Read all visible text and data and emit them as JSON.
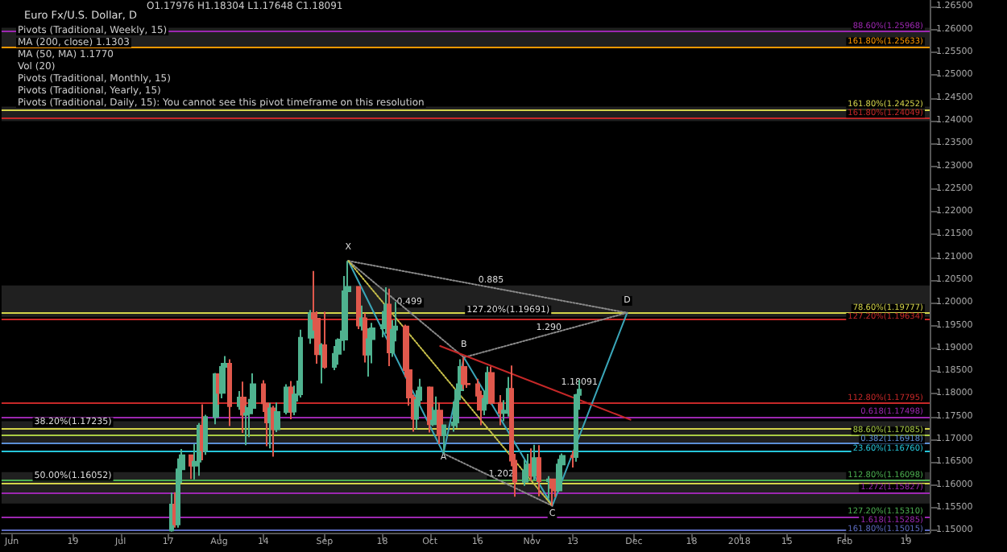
{
  "chart_data": {
    "type": "candlestick",
    "title": "Euro Fx/U.S. Dollar, D",
    "xlim": [
      "2017-05-29",
      "2018-02-26"
    ],
    "xticks": [
      {
        "value": "2017-06-01",
        "label": "Jun"
      },
      {
        "value": "2017-06-19",
        "label": "19"
      },
      {
        "value": "2017-07-03",
        "label": "Jul"
      },
      {
        "value": "2017-07-17",
        "label": "17"
      },
      {
        "value": "2017-08-01",
        "label": "Aug"
      },
      {
        "value": "2017-08-14",
        "label": "14"
      },
      {
        "value": "2017-09-01",
        "label": "Sep"
      },
      {
        "value": "2017-09-18",
        "label": "18"
      },
      {
        "value": "2017-10-02",
        "label": "Oct"
      },
      {
        "value": "2017-10-16",
        "label": "16"
      },
      {
        "value": "2017-11-01",
        "label": "Nov"
      },
      {
        "value": "2017-11-13",
        "label": "13"
      },
      {
        "value": "2017-12-01",
        "label": "Dec"
      },
      {
        "value": "2017-12-18",
        "label": "18"
      },
      {
        "value": "2018-01-01",
        "label": "2018"
      },
      {
        "value": "2018-01-15",
        "label": "15"
      },
      {
        "value": "2018-02-01",
        "label": "Feb"
      },
      {
        "value": "2018-02-19",
        "label": "19"
      }
    ],
    "ylim": [
      1.1495,
      1.2665
    ],
    "yticks": [
      {
        "value": 1.15,
        "label": "1.15000"
      },
      {
        "value": 1.155,
        "label": "1.15500"
      },
      {
        "value": 1.16,
        "label": "1.16000"
      },
      {
        "value": 1.165,
        "label": "1.16500"
      },
      {
        "value": 1.17,
        "label": "1.17000"
      },
      {
        "value": 1.175,
        "label": "1.17500"
      },
      {
        "value": 1.18,
        "label": "1.18000"
      },
      {
        "value": 1.185,
        "label": "1.18500"
      },
      {
        "value": 1.19,
        "label": "1.19000"
      },
      {
        "value": 1.195,
        "label": "1.19500"
      },
      {
        "value": 1.2,
        "label": "1.20000"
      },
      {
        "value": 1.205,
        "label": "1.20500"
      },
      {
        "value": 1.21,
        "label": "1.21000"
      },
      {
        "value": 1.215,
        "label": "1.21500"
      },
      {
        "value": 1.22,
        "label": "1.22000"
      },
      {
        "value": 1.225,
        "label": "1.22500"
      },
      {
        "value": 1.23,
        "label": "1.23000"
      },
      {
        "value": 1.235,
        "label": "1.23500"
      },
      {
        "value": 1.24,
        "label": "1.24000"
      },
      {
        "value": 1.245,
        "label": "1.24500"
      },
      {
        "value": 1.25,
        "label": "1.25000"
      },
      {
        "value": 1.255,
        "label": "1.25500"
      },
      {
        "value": 1.26,
        "label": "1.26000"
      },
      {
        "value": 1.265,
        "label": "1.26500"
      }
    ],
    "bands": [
      {
        "axis": "y",
        "from": 1.2559,
        "to": 1.2604,
        "color": "#3a3a3a"
      },
      {
        "axis": "y",
        "from": 1.2399,
        "to": 1.2431,
        "color": "#3a3a3a"
      },
      {
        "axis": "y",
        "from": 1.1969,
        "to": 1.2038,
        "color": "#3a3a3a"
      },
      {
        "axis": "y",
        "from": 1.1691,
        "to": 1.174,
        "color": "#3a3a3a"
      },
      {
        "axis": "y",
        "from": 1.1559,
        "to": 1.1628,
        "color": "#3a3a3a"
      }
    ],
    "ref_lines": [
      {
        "axis": "y",
        "value": 1.25968,
        "label": "88.60%(1.25968)",
        "color": "#9c27b0"
      },
      {
        "axis": "y",
        "value": 1.25633,
        "label": "161.80%(1.25633)",
        "color": "#ff9800"
      },
      {
        "axis": "y",
        "value": 1.24252,
        "label": "161.80%(1.24252)",
        "color": "#d4d44a"
      },
      {
        "axis": "y",
        "value": 1.24049,
        "label": "161.80%(1.24049)",
        "color": "#c62828"
      },
      {
        "axis": "y",
        "value": 1.19777,
        "label": "78.60%(1.19777)",
        "color": "#d4d44a"
      },
      {
        "axis": "y",
        "value": 1.19634,
        "label": "127.20%(1.19634)",
        "color": "#c62828"
      },
      {
        "axis": "y",
        "value": 1.17795,
        "label": "112.80%(1.17795)",
        "color": "#c62828"
      },
      {
        "axis": "y",
        "value": 1.17498,
        "label": "0.618(1.17498)",
        "color": "#9c27b0"
      },
      {
        "axis": "y",
        "value": 1.17235,
        "color": "#d4d44a"
      },
      {
        "axis": "y",
        "value": 1.17085,
        "label": "88.60%(1.17085)",
        "color": "#aacc44"
      },
      {
        "axis": "y",
        "value": 1.16918,
        "label": "0.382(1.16918)",
        "color": "#5c8fd6"
      },
      {
        "axis": "y",
        "value": 1.1676,
        "label": "23.60%(1.16760)",
        "color": "#26c6da"
      },
      {
        "axis": "y",
        "value": 1.16098,
        "label": "112.80%(1.16098)",
        "color": "#4caf50"
      },
      {
        "axis": "y",
        "value": 1.16052,
        "color": "#d4d44a"
      },
      {
        "axis": "y",
        "value": 1.15827,
        "label": "1.272(1.15827)",
        "color": "#9c27b0"
      },
      {
        "axis": "y",
        "value": 1.1531,
        "label": "127.20%(1.15310)",
        "color": "#4caf50"
      },
      {
        "axis": "y",
        "value": 1.15285,
        "label": "1.618(1.15285)",
        "color": "#9c27b0"
      },
      {
        "axis": "y",
        "value": 1.15015,
        "label": "161.80%(1.15015)",
        "color": "#5c6bc0"
      }
    ],
    "annotations": [
      "O1.17976 H1.18304 L1.17648 C1.18091",
      "Pivots (Traditional, Weekly, 15)",
      "MA (200, close) 1.1303",
      "MA (50, MA) 1.1770",
      "Vol (20)",
      "Pivots (Traditional, Monthly, 15)",
      "Pivots (Traditional, Yearly, 15)",
      "Pivots (Traditional, Daily, 15): You cannot see this pivot timeframe on this resolution",
      {
        "text": "1.18091",
        "x": "2017-11-15",
        "y": 1.18091
      },
      {
        "text": "38.20%(1.17235)",
        "x": "2017-06-19",
        "y": 1.17235
      },
      {
        "text": "50.00%(1.16052)",
        "x": "2017-06-19",
        "y": 1.16052
      },
      {
        "text": "X",
        "x": "2017-09-08",
        "y": 1.2106
      },
      {
        "text": "A",
        "x": "2017-10-06",
        "y": 1.1645
      },
      {
        "text": "B",
        "x": "2017-10-12",
        "y": 1.1893
      },
      {
        "text": "C",
        "x": "2017-11-07",
        "y": 1.1554
      },
      {
        "text": "D",
        "x": "2017-11-29",
        "y": 1.199
      },
      {
        "text": "0.885",
        "x": "2017-10-20",
        "y": 1.2034
      },
      {
        "text": "0.499",
        "x": "2017-09-26",
        "y": 1.1986
      },
      {
        "text": "127.20%(1.19691)",
        "x": "2017-10-25",
        "y": 1.1969
      },
      {
        "text": "1.290",
        "x": "2017-11-06",
        "y": 1.1929
      },
      {
        "text": "1.202",
        "x": "2017-10-23",
        "y": 1.1608
      }
    ],
    "series": [
      {
        "x": [
          "2017-07-18",
          "2017-07-19",
          "2017-07-20",
          "2017-07-21",
          "2017-07-24",
          "2017-07-25",
          "2017-07-26",
          "2017-07-27",
          "2017-07-28",
          "2017-07-31",
          "2017-08-01",
          "2017-08-02",
          "2017-08-03",
          "2017-08-04",
          "2017-08-07",
          "2017-08-08",
          "2017-08-09",
          "2017-08-10",
          "2017-08-11",
          "2017-08-14",
          "2017-08-15",
          "2017-08-16",
          "2017-08-17",
          "2017-08-18",
          "2017-08-21",
          "2017-08-22",
          "2017-08-23",
          "2017-08-24",
          "2017-08-25",
          "2017-08-28",
          "2017-08-29",
          "2017-08-30",
          "2017-08-31",
          "2017-09-01",
          "2017-09-04",
          "2017-09-05",
          "2017-09-06",
          "2017-09-07",
          "2017-09-08",
          "2017-09-11",
          "2017-09-12",
          "2017-09-13",
          "2017-09-14",
          "2017-09-15",
          "2017-09-18",
          "2017-09-19",
          "2017-09-20",
          "2017-09-21",
          "2017-09-22",
          "2017-09-25",
          "2017-09-26",
          "2017-09-27",
          "2017-09-28",
          "2017-09-29",
          "2017-10-02",
          "2017-10-03",
          "2017-10-04",
          "2017-10-05",
          "2017-10-06",
          "2017-10-09",
          "2017-10-10",
          "2017-10-11",
          "2017-10-12",
          "2017-10-13",
          "2017-10-16",
          "2017-10-17",
          "2017-10-18",
          "2017-10-19",
          "2017-10-20",
          "2017-10-23",
          "2017-10-24",
          "2017-10-25",
          "2017-10-26",
          "2017-10-27",
          "2017-10-30",
          "2017-10-31",
          "2017-11-01",
          "2017-11-02",
          "2017-11-03",
          "2017-11-06",
          "2017-11-07",
          "2017-11-08",
          "2017-11-09",
          "2017-11-10",
          "2017-11-13",
          "2017-11-14",
          "2017-11-15"
        ],
        "ohlc": [
          [
            1.15,
            1.1583,
            1.1497,
            1.1557
          ],
          [
            1.1557,
            1.1584,
            1.1506,
            1.1513
          ],
          [
            1.1513,
            1.1658,
            1.1506,
            1.1634
          ],
          [
            1.1634,
            1.1679,
            1.1604,
            1.1665
          ],
          [
            1.1665,
            1.1666,
            1.1613,
            1.1642
          ],
          [
            1.1642,
            1.169,
            1.1612,
            1.1651
          ],
          [
            1.1651,
            1.1736,
            1.162,
            1.173
          ],
          [
            1.173,
            1.1777,
            1.1654,
            1.1676
          ],
          [
            1.1676,
            1.1754,
            1.1666,
            1.1749
          ],
          [
            1.1749,
            1.1846,
            1.1733,
            1.1843
          ],
          [
            1.1843,
            1.1845,
            1.1776,
            1.1802
          ],
          [
            1.1802,
            1.1868,
            1.179,
            1.1859
          ],
          [
            1.1859,
            1.1883,
            1.1828,
            1.1866
          ],
          [
            1.1866,
            1.1876,
            1.1729,
            1.1773
          ],
          [
            1.1773,
            1.1806,
            1.1765,
            1.1792
          ],
          [
            1.1792,
            1.1827,
            1.1714,
            1.1754
          ],
          [
            1.1754,
            1.1774,
            1.1687,
            1.1757
          ],
          [
            1.1757,
            1.1789,
            1.1705,
            1.1769
          ],
          [
            1.1769,
            1.1845,
            1.176,
            1.1821
          ],
          [
            1.1821,
            1.183,
            1.176,
            1.1779
          ],
          [
            1.1779,
            1.1781,
            1.1685,
            1.1737
          ],
          [
            1.1737,
            1.178,
            1.168,
            1.1768
          ],
          [
            1.1768,
            1.1774,
            1.1662,
            1.1722
          ],
          [
            1.1722,
            1.1781,
            1.1716,
            1.176
          ],
          [
            1.176,
            1.1821,
            1.1755,
            1.1814
          ],
          [
            1.1814,
            1.1828,
            1.1744,
            1.1761
          ],
          [
            1.1761,
            1.1818,
            1.1753,
            1.1798
          ],
          [
            1.1798,
            1.1829,
            1.1783,
            1.1799
          ],
          [
            1.1799,
            1.1941,
            1.1792,
            1.1923
          ],
          [
            1.1923,
            1.1984,
            1.191,
            1.1977
          ],
          [
            1.1977,
            1.207,
            1.1939,
            1.1965
          ],
          [
            1.1965,
            1.1981,
            1.1866,
            1.1887
          ],
          [
            1.1887,
            1.1911,
            1.1823,
            1.1907
          ],
          [
            1.1907,
            1.198,
            1.1855,
            1.1859
          ],
          [
            1.1859,
            1.1905,
            1.1852,
            1.1888
          ],
          [
            1.1888,
            1.1922,
            1.1864,
            1.1918
          ],
          [
            1.1918,
            1.1939,
            1.1897,
            1.1919
          ],
          [
            1.1919,
            1.2059,
            1.1895,
            1.2025
          ],
          [
            1.2025,
            1.2092,
            1.2009,
            1.2035
          ],
          [
            1.2035,
            1.2036,
            1.1942,
            1.195
          ],
          [
            1.195,
            1.1994,
            1.1939,
            1.1966
          ],
          [
            1.1966,
            1.1977,
            1.1869,
            1.1886
          ],
          [
            1.1886,
            1.1944,
            1.1838,
            1.192
          ],
          [
            1.192,
            1.1956,
            1.1867,
            1.1944
          ],
          [
            1.1944,
            1.1982,
            1.1924,
            1.1951
          ],
          [
            1.1951,
            1.2034,
            1.1932,
            1.1996
          ],
          [
            1.1996,
            1.2031,
            1.1861,
            1.1891
          ],
          [
            1.1891,
            1.1962,
            1.1881,
            1.1941
          ],
          [
            1.1941,
            1.2002,
            1.1915,
            1.1948
          ],
          [
            1.1948,
            1.1952,
            1.1837,
            1.1852
          ],
          [
            1.1852,
            1.1867,
            1.1774,
            1.1792
          ],
          [
            1.1792,
            1.1798,
            1.1717,
            1.1745
          ],
          [
            1.1745,
            1.1808,
            1.1722,
            1.1786
          ],
          [
            1.1786,
            1.1833,
            1.1774,
            1.1814
          ],
          [
            1.1814,
            1.1816,
            1.1715,
            1.1733
          ],
          [
            1.1733,
            1.1771,
            1.1729,
            1.1741
          ],
          [
            1.1741,
            1.1794,
            1.1739,
            1.1763
          ],
          [
            1.1763,
            1.1781,
            1.169,
            1.1709
          ],
          [
            1.1709,
            1.1732,
            1.1669,
            1.1731
          ],
          [
            1.1731,
            1.1783,
            1.1717,
            1.1737
          ],
          [
            1.1737,
            1.1823,
            1.1725,
            1.1808
          ],
          [
            1.1808,
            1.1876,
            1.1786,
            1.1859
          ],
          [
            1.1859,
            1.188,
            1.181,
            1.1822
          ],
          [
            1.1822,
            1.1859,
            1.1813,
            1.1821
          ],
          [
            1.1821,
            1.1833,
            1.1763,
            1.1796
          ],
          [
            1.1796,
            1.1807,
            1.1731,
            1.1765
          ],
          [
            1.1765,
            1.1807,
            1.1753,
            1.1789
          ],
          [
            1.1789,
            1.186,
            1.1777,
            1.1846
          ],
          [
            1.1846,
            1.186,
            1.1777,
            1.178
          ],
          [
            1.178,
            1.1797,
            1.1731,
            1.1758
          ],
          [
            1.1758,
            1.1786,
            1.174,
            1.1763
          ],
          [
            1.1763,
            1.1837,
            1.175,
            1.1811
          ],
          [
            1.1811,
            1.1862,
            1.1641,
            1.1653
          ],
          [
            1.1653,
            1.1668,
            1.1574,
            1.1607
          ],
          [
            1.1607,
            1.1655,
            1.1598,
            1.1632
          ],
          [
            1.1632,
            1.1668,
            1.1624,
            1.1645
          ],
          [
            1.1645,
            1.168,
            1.1609,
            1.162
          ],
          [
            1.162,
            1.1688,
            1.161,
            1.1659
          ],
          [
            1.1659,
            1.1687,
            1.1575,
            1.1608
          ],
          [
            1.1608,
            1.1619,
            1.157,
            1.1612
          ],
          [
            1.1612,
            1.1614,
            1.1554,
            1.1593
          ],
          [
            1.1593,
            1.1609,
            1.1573,
            1.1588
          ],
          [
            1.1588,
            1.1657,
            1.1584,
            1.1645
          ],
          [
            1.1645,
            1.1669,
            1.163,
            1.1664
          ],
          [
            1.1664,
            1.1675,
            1.1638,
            1.1661
          ],
          [
            1.1661,
            1.18,
            1.1651,
            1.1797
          ],
          [
            1.17976,
            1.18304,
            1.17648,
            1.18091
          ]
        ],
        "colors": [
          "#4fb28f",
          "#e0584c",
          "#4fb28f",
          "#4fb28f",
          "#e0584c",
          "#4fb28f",
          "#4fb28f",
          "#e0584c",
          "#4fb28f",
          "#4fb28f",
          "#e0584c",
          "#4fb28f",
          "#4fb28f",
          "#e0584c",
          "#4fb28f",
          "#e0584c",
          "#4fb28f",
          "#4fb28f",
          "#4fb28f",
          "#e0584c",
          "#e0584c",
          "#4fb28f",
          "#e0584c",
          "#4fb28f",
          "#4fb28f",
          "#e0584c",
          "#4fb28f",
          "#4fb28f",
          "#4fb28f",
          "#4fb28f",
          "#e0584c",
          "#e0584c",
          "#4fb28f",
          "#e0584c",
          "#4fb28f",
          "#4fb28f",
          "#4fb28f",
          "#4fb28f",
          "#4fb28f",
          "#e0584c",
          "#4fb28f",
          "#e0584c",
          "#4fb28f",
          "#4fb28f",
          "#4fb28f",
          "#4fb28f",
          "#e0584c",
          "#4fb28f",
          "#4fb28f",
          "#e0584c",
          "#e0584c",
          "#e0584c",
          "#4fb28f",
          "#4fb28f",
          "#e0584c",
          "#4fb28f",
          "#4fb28f",
          "#e0584c",
          "#4fb28f",
          "#4fb28f",
          "#4fb28f",
          "#4fb28f",
          "#e0584c",
          "#e0584c",
          "#e0584c",
          "#e0584c",
          "#4fb28f",
          "#4fb28f",
          "#e0584c",
          "#e0584c",
          "#4fb28f",
          "#4fb28f",
          "#e0584c",
          "#e0584c",
          "#4fb28f",
          "#4fb28f",
          "#e0584c",
          "#4fb28f",
          "#e0584c",
          "#4fb28f",
          "#e0584c",
          "#e0584c",
          "#4fb28f",
          "#4fb28f",
          "#e0584c",
          "#4fb28f",
          "#4fb28f"
        ]
      },
      {
        "type": "line",
        "x": [
          "2017-09-08",
          "2017-10-06",
          "2017-10-12",
          "2017-11-07",
          "2017-11-29"
        ],
        "values": [
          1.2092,
          1.1669,
          1.188,
          1.1554,
          1.19777
        ],
        "color": "#3aa6b9"
      },
      {
        "type": "line",
        "x": [
          "2017-09-08",
          "2017-10-12"
        ],
        "values": [
          1.2092,
          1.188
        ],
        "color": "#8a8a8a",
        "line_style": "dotted"
      },
      {
        "type": "line",
        "x": [
          "2017-09-08",
          "2017-11-29"
        ],
        "values": [
          1.2092,
          1.1978
        ],
        "color": "#8a8a8a",
        "line_style": "dotted"
      },
      {
        "type": "line",
        "x": [
          "2017-10-12",
          "2017-11-29"
        ],
        "values": [
          1.188,
          1.1978
        ],
        "color": "#8a8a8a",
        "line_style": "dotted"
      },
      {
        "type": "line",
        "x": [
          "2017-10-06",
          "2017-11-07"
        ],
        "values": [
          1.1669,
          1.1554
        ],
        "color": "#8a8a8a",
        "line_style": "dotted"
      },
      {
        "type": "line",
        "x": [
          "2017-09-08",
          "2017-11-07"
        ],
        "values": [
          1.2092,
          1.1554
        ],
        "color": "#c8c04a",
        "line_style": "dotted"
      },
      {
        "type": "line",
        "x": [
          "2017-10-05",
          "2017-11-30"
        ],
        "values": [
          1.1905,
          1.1743
        ],
        "color": "#c62828"
      }
    ]
  }
}
